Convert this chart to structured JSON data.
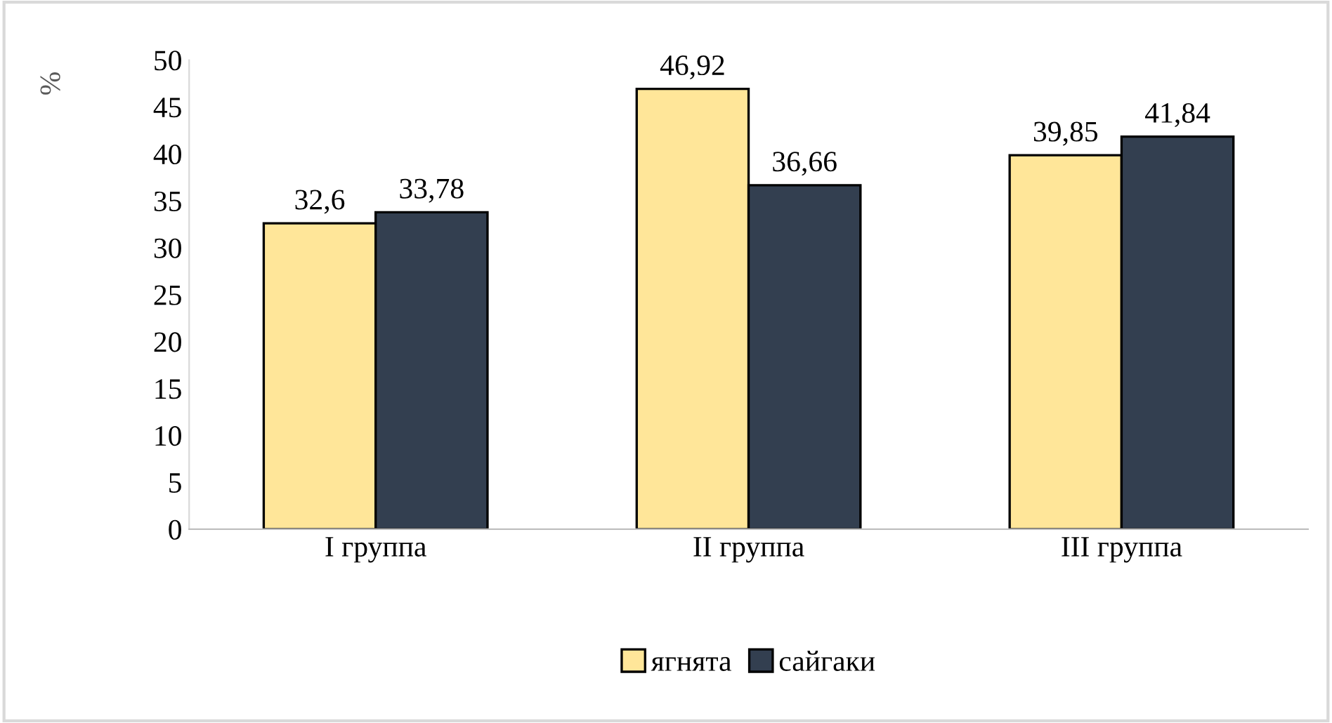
{
  "chart_data": {
    "type": "bar",
    "ylabel": "%",
    "categories": [
      "I группа",
      "II группа",
      "III группа"
    ],
    "series": [
      {
        "name": "ягнята",
        "color": "#ffe699",
        "values": [
          32.6,
          46.92,
          39.85
        ],
        "value_labels": [
          "32,6",
          "46,92",
          "39,85"
        ]
      },
      {
        "name": "сайгаки",
        "color": "#333f50",
        "values": [
          33.78,
          36.66,
          41.84
        ],
        "value_labels": [
          "33,78",
          "36,66",
          "41,84"
        ]
      }
    ],
    "ylim": [
      0,
      50
    ],
    "yticks": [
      0,
      5,
      10,
      15,
      20,
      25,
      30,
      35,
      40,
      45,
      50
    ],
    "grid": false,
    "legend": "bottom"
  }
}
